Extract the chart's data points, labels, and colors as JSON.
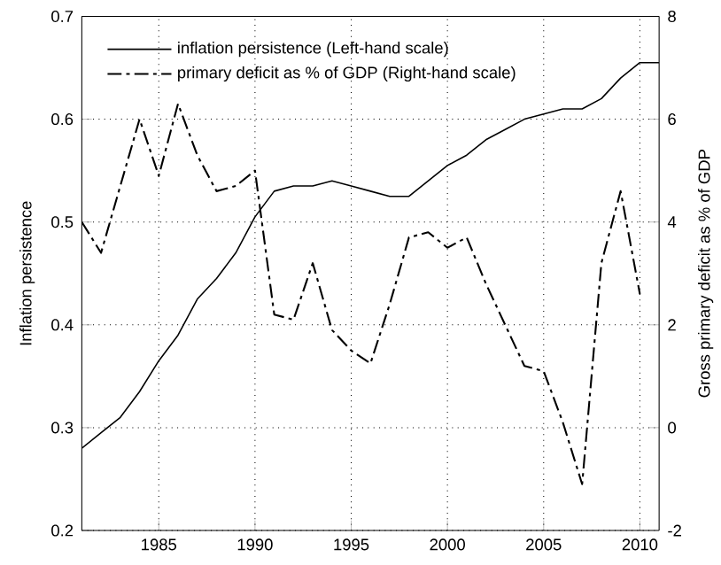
{
  "chart_data": {
    "type": "line",
    "xlabel": null,
    "ylabel": "Inflation persistence",
    "y2label": "Gross primary deficit as % of GDP",
    "x": [
      1981,
      1982,
      1983,
      1984,
      1985,
      1986,
      1987,
      1988,
      1989,
      1990,
      1991,
      1992,
      1993,
      1994,
      1995,
      1996,
      1997,
      1998,
      1999,
      2000,
      2001,
      2002,
      2003,
      2004,
      2005,
      2006,
      2007,
      2008,
      2009,
      2010,
      2011
    ],
    "series": [
      {
        "name": "inflation persistence (Left-hand scale)",
        "color": "#000000",
        "line_style": "solid",
        "values": [
          0.28,
          0.295,
          0.31,
          0.335,
          0.365,
          0.39,
          0.425,
          0.445,
          0.47,
          0.505,
          0.53,
          0.535,
          0.535,
          0.54,
          0.535,
          0.53,
          0.525,
          0.525,
          0.54,
          0.555,
          0.565,
          0.58,
          0.59,
          0.6,
          0.605,
          0.61,
          0.61,
          0.62,
          0.64,
          0.655,
          0.655
        ]
      },
      {
        "name": "primary deficit as % of GDP (Right-hand scale)",
        "color": "#000000",
        "line_style": "dashdot",
        "axis": "y2",
        "values": [
          4.0,
          3.4,
          4.7,
          6.0,
          4.9,
          6.3,
          5.3,
          4.6,
          4.7,
          5.0,
          2.2,
          2.1,
          3.2,
          1.9,
          1.5,
          1.25,
          2.4,
          3.7,
          3.8,
          3.5,
          3.7,
          2.8,
          2.0,
          1.2,
          1.1,
          0.1,
          -1.1,
          3.2,
          4.6,
          2.6,
          null
        ]
      }
    ],
    "xlim": [
      1981,
      2011
    ],
    "xticks": [
      1985,
      1990,
      1995,
      2000,
      2005,
      2010
    ],
    "ylim": [
      0.2,
      0.7
    ],
    "yticks": [
      0.2,
      0.3,
      0.4,
      0.5,
      0.6,
      0.7
    ],
    "y2lim": [
      -2,
      8
    ],
    "y2ticks": [
      -2,
      0,
      2,
      4,
      6,
      8
    ],
    "grid": true,
    "legend": "top left",
    "marker": "none"
  }
}
